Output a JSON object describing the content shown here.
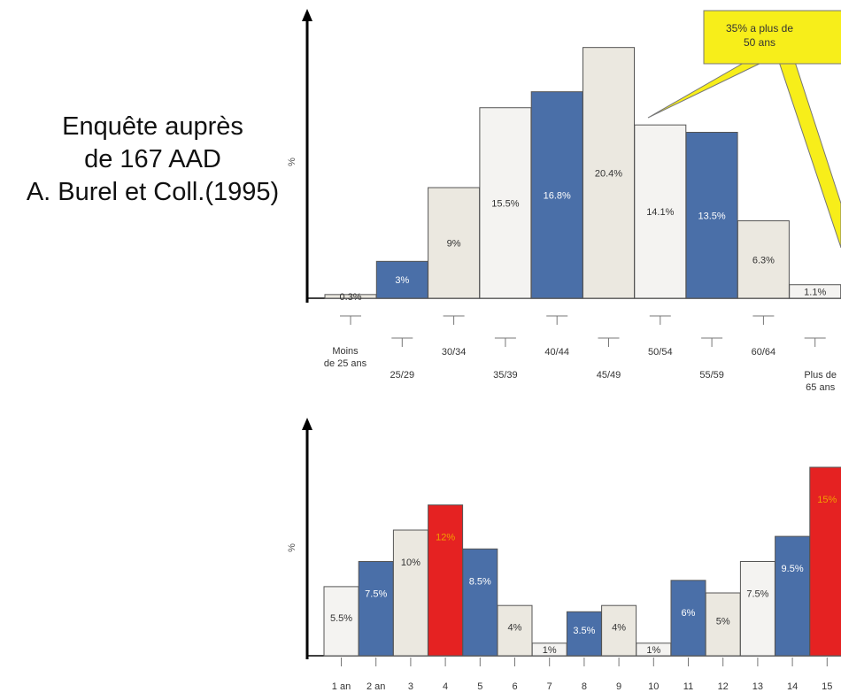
{
  "side_title": {
    "lines": [
      "Enquête auprès",
      "de 167 AAD",
      "A. Burel et Coll.(1995)"
    ]
  },
  "chart_data": [
    {
      "type": "bar",
      "ylabel": "%",
      "ylim": [
        0,
        21.6
      ],
      "categories": [
        "Moins de 25 ans",
        "25/29",
        "30/34",
        "35/39",
        "40/44",
        "45/49",
        "50/54",
        "55/59",
        "60/64",
        "Plus de 65 ans"
      ],
      "highlight_category": "45/49",
      "values": [
        0.3,
        3,
        9,
        15.5,
        16.8,
        20.4,
        14.1,
        13.5,
        6.3,
        1.1
      ],
      "value_labels": [
        "0.3%",
        "3%",
        "9%",
        "15.5%",
        "16.8%",
        "20.4%",
        "14.1%",
        "13.5%",
        "6.3%",
        "1.1%"
      ],
      "bar_colors": [
        "#ebe8e0",
        "#4a6fa8",
        "#ebe8e0",
        "#f4f3f1",
        "#4a6fa8",
        "#ebe8e0",
        "#f4f3f1",
        "#4a6fa8",
        "#ebe8e0",
        "#f4f3f1"
      ],
      "annotation": {
        "lines": [
          "35% a plus de",
          "50 ans"
        ]
      }
    },
    {
      "type": "bar",
      "ylabel": "%",
      "ylim": [
        0,
        15.5
      ],
      "categories": [
        "1 an",
        "2 an",
        "3",
        "4",
        "5",
        "6",
        "7",
        "8",
        "9",
        "10",
        "11",
        "12",
        "13",
        "14",
        "15"
      ],
      "values": [
        5.5,
        7.5,
        10,
        12,
        8.5,
        4,
        1,
        3.5,
        4,
        1,
        6,
        5,
        7.5,
        9.5,
        15
      ],
      "value_labels": [
        "5.5%",
        "7.5%",
        "10%",
        "12%",
        "8.5%",
        "4%",
        "1%",
        "3.5%",
        "4%",
        "1%",
        "6%",
        "5%",
        "7.5%",
        "9.5%",
        "15%"
      ],
      "bar_colors": [
        "#f4f3f1",
        "#4a6fa8",
        "#ebe8e0",
        "#e52222",
        "#4a6fa8",
        "#ebe8e0",
        "#f4f3f1",
        "#4a6fa8",
        "#ebe8e0",
        "#f4f3f1",
        "#4a6fa8",
        "#ebe8e0",
        "#f4f3f1",
        "#4a6fa8",
        "#e52222"
      ]
    }
  ],
  "colors": {
    "blue": "#4a6fa8",
    "beige": "#ebe8e0",
    "white": "#f4f3f1",
    "red": "#e52222",
    "callout": "#f7ee1a",
    "highlight_text": "#e53322"
  }
}
